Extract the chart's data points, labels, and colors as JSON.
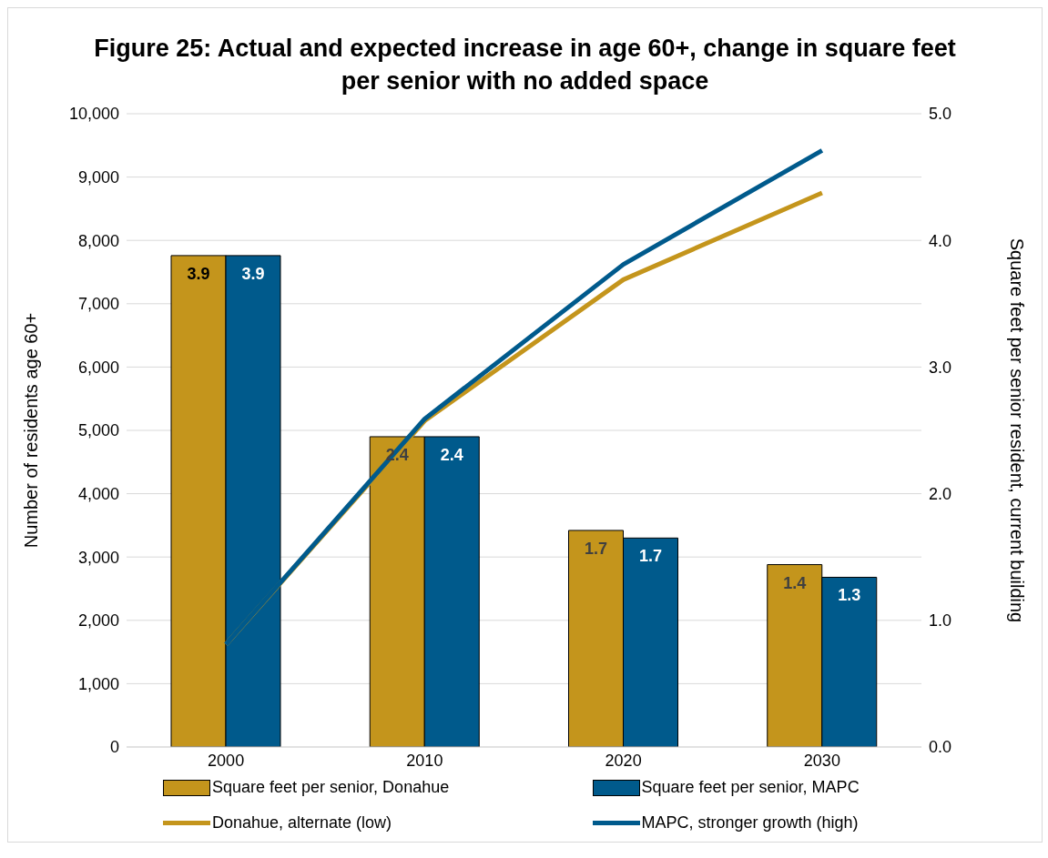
{
  "chart_data": {
    "type": "bar",
    "title": "Figure 25: Actual and expected increase in age 60+, change in square feet per senior with no added space",
    "categories": [
      "2000",
      "2010",
      "2020",
      "2030"
    ],
    "ylabel": "Number of residents age 60+",
    "y2label": "Square feet per senior resident, current building",
    "ylim": [
      0,
      10000
    ],
    "yticks": [
      0,
      {
        "value": 1000,
        "label": "1,000"
      },
      {
        "value": 2000,
        "label": "2,000"
      },
      {
        "value": 3000,
        "label": "3,000"
      },
      {
        "value": 4000,
        "label": "4,000"
      },
      {
        "value": 5000,
        "label": "5,000"
      },
      {
        "value": 6000,
        "label": "6,000"
      },
      {
        "value": 7000,
        "label": "7,000"
      },
      {
        "value": 8000,
        "label": "8,000"
      },
      {
        "value": 9000,
        "label": "9,000"
      },
      {
        "value": 10000,
        "label": "10,000"
      }
    ],
    "y2lim": [
      0,
      5
    ],
    "y2ticks": [
      {
        "value": 0,
        "label": "0.0"
      },
      {
        "value": 1,
        "label": "1.0"
      },
      {
        "value": 2,
        "label": "2.0"
      },
      {
        "value": 3,
        "label": "3.0"
      },
      {
        "value": 4,
        "label": "4.0"
      },
      {
        "value": 5,
        "label": "5.0"
      }
    ],
    "series": [
      {
        "name": "Square feet per senior, Donahue",
        "axis": "y2",
        "color": "#c4951c",
        "values": [
          3.88,
          2.45,
          1.71,
          1.44
        ],
        "value_labels": [
          "3.9",
          "2.4",
          "1.7",
          "1.4"
        ]
      },
      {
        "name": "Square feet per senior, MAPC",
        "axis": "y2",
        "color": "#005a8c",
        "values": [
          3.88,
          2.45,
          1.65,
          1.34
        ],
        "value_labels": [
          "3.9",
          "2.4",
          "1.7",
          "1.3"
        ]
      },
      {
        "name": "Donahue, alternate (low)",
        "type": "line",
        "color": "#c4951c",
        "values": [
          1620,
          5150,
          7380,
          8750
        ]
      },
      {
        "name": "MAPC, stronger growth (high)",
        "type": "line",
        "color": "#005a8c",
        "values": [
          1620,
          5180,
          7620,
          9420
        ]
      }
    ],
    "grid": "y",
    "legend": "bottom",
    "marker": "none",
    "line_style": "solid"
  }
}
